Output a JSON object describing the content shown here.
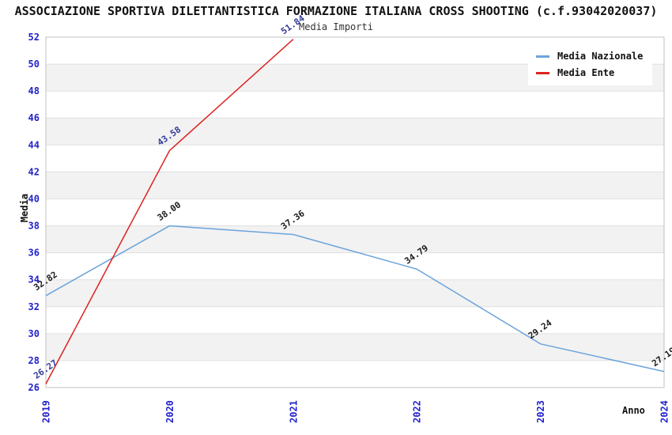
{
  "page": {
    "title": "ASSOCIAZIONE SPORTIVA DILETTANTISTICA FORMAZIONE ITALIANA CROSS SHOOTING (c.f.93042020037)",
    "subtitle": "Media Importi"
  },
  "colors": {
    "tick_label": "#2222cc",
    "grid_line": "#e0e0e0",
    "band_light": "#ffffff",
    "band_dark": "#f2f2f2",
    "plot_border": "#c0c0c0",
    "blue_series": "#6ba3db",
    "red_series": "#dd2222"
  },
  "chart_data": {
    "type": "line",
    "title": "ASSOCIAZIONE SPORTIVA DILETTANTISTICA FORMAZIONE ITALIANA CROSS SHOOTING (c.f.93042020037)",
    "subtitle": "Media Importi",
    "xlabel": "Anno",
    "ylabel": "Media",
    "x": [
      2019,
      2020,
      2021,
      2022,
      2023,
      2024
    ],
    "xtick_labels": [
      "2019",
      "2020",
      "2021",
      "2022",
      "2023",
      "2024"
    ],
    "ylim": [
      26,
      52
    ],
    "ytick_step": 2,
    "yticks": [
      26,
      28,
      30,
      32,
      34,
      36,
      38,
      40,
      42,
      44,
      46,
      48,
      50,
      52
    ],
    "grid": true,
    "background_bands": true,
    "legend_position": "top-right",
    "series": [
      {
        "name": "Media Nazionale",
        "color": "#6ba3db",
        "label_color": "#1a1a1a",
        "values": [
          32.82,
          38.0,
          37.36,
          34.79,
          29.24,
          27.19
        ],
        "point_labels": [
          "32.82",
          "38.00",
          "37.36",
          "34.79",
          "29.24",
          "27.19"
        ]
      },
      {
        "name": "Media Ente",
        "color": "#dd2222",
        "label_color": "#333a99",
        "values": [
          26.27,
          43.58,
          51.84,
          null,
          null,
          null
        ],
        "point_labels": [
          "26.27",
          "43.58",
          "51.84",
          "",
          "",
          ""
        ]
      }
    ]
  }
}
